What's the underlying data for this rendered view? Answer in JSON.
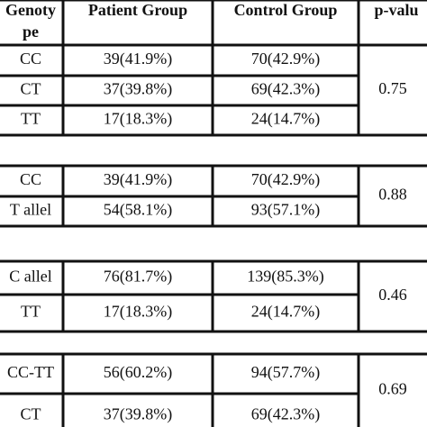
{
  "table": {
    "header": [
      [
        "Genoty",
        "pe"
      ],
      "Patient Group",
      "Control Group",
      "p-valu"
    ],
    "groups": [
      {
        "rows": [
          [
            "CC",
            "39(41.9%)",
            "70(42.9%)"
          ],
          [
            "CT",
            "37(39.8%)",
            "69(42.3%)"
          ],
          [
            "TT",
            "17(18.3%)",
            "24(14.7%)"
          ]
        ],
        "p": "0.75"
      },
      {
        "rows": [
          [
            "CC",
            "39(41.9%)",
            "70(42.9%)"
          ],
          [
            "T allel",
            "54(58.1%)",
            "93(57.1%)"
          ]
        ],
        "p": "0.88"
      },
      {
        "rows": [
          [
            "C allel",
            "76(81.7%)",
            "139(85.3%)"
          ],
          [
            "TT",
            "17(18.3%)",
            "24(14.7%)"
          ]
        ],
        "p": "0.46"
      },
      {
        "rows": [
          [
            "CC-TT",
            "56(60.2%)",
            "94(57.7%)"
          ],
          [
            "CT",
            "37(39.8%)",
            "69(42.3%)"
          ]
        ],
        "p": "0.69"
      }
    ]
  }
}
